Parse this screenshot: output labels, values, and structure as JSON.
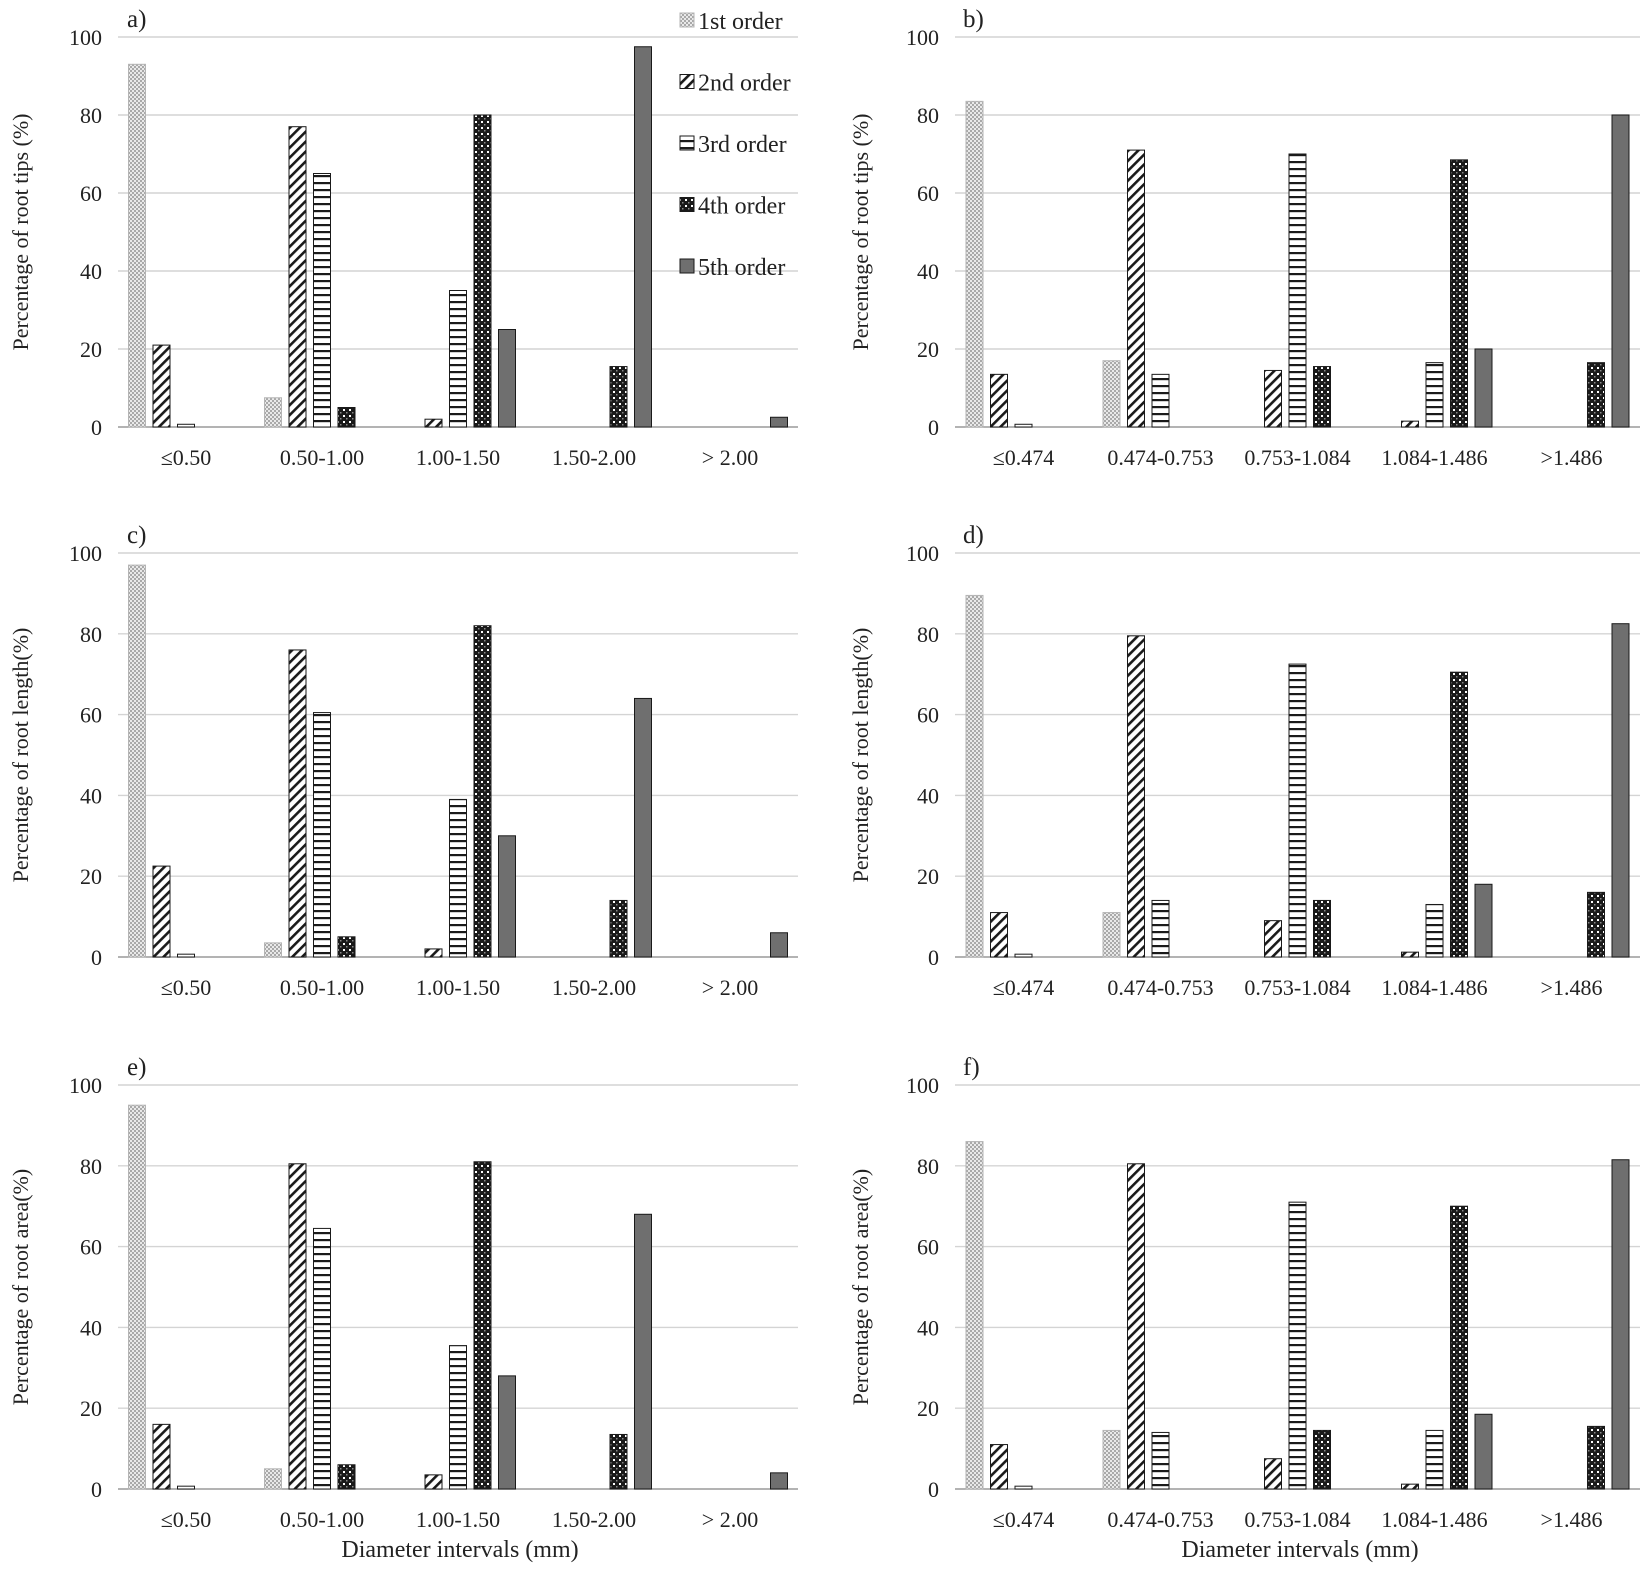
{
  "figure": {
    "x_axis_title": "Diameter intervals (mm)",
    "legend": {
      "entries": [
        {
          "label": "1st order",
          "pattern": "dots"
        },
        {
          "label": "2nd order",
          "pattern": "diag"
        },
        {
          "label": "3rd order",
          "pattern": "horiz"
        },
        {
          "label": "4th order",
          "pattern": "check"
        },
        {
          "label": "5th order",
          "pattern": "solid"
        }
      ],
      "placement": "top-right of panel a"
    }
  },
  "chart_data": [
    {
      "panel": "a)",
      "type": "bar",
      "ylabel": "Percentage of root tips (%)",
      "ylim": [
        0,
        100
      ],
      "yticks": [
        "0",
        "20",
        "40",
        "60",
        "80",
        "100"
      ],
      "categories": [
        "≤0.50",
        "0.50-1.00",
        "1.00-1.50",
        "1.50-2.00",
        "> 2.00"
      ],
      "series": [
        {
          "name": "1st order",
          "values": [
            93,
            7.5,
            0,
            0,
            0
          ]
        },
        {
          "name": "2nd order",
          "values": [
            21,
            77,
            2,
            0,
            0
          ]
        },
        {
          "name": "3rd order",
          "values": [
            0.7,
            65,
            35,
            0,
            0
          ]
        },
        {
          "name": "4th order",
          "values": [
            0,
            5,
            80,
            15.5,
            0
          ]
        },
        {
          "name": "5th order",
          "values": [
            0,
            0,
            25,
            97.5,
            2.5
          ]
        }
      ]
    },
    {
      "panel": "b)",
      "type": "bar",
      "ylabel": "Percentage of root tips (%)",
      "ylim": [
        0,
        100
      ],
      "yticks": [
        "0",
        "20",
        "40",
        "60",
        "80",
        "100"
      ],
      "categories": [
        "≤0.474",
        "0.474-0.753",
        "0.753-1.084",
        "1.084-1.486",
        ">1.486"
      ],
      "series": [
        {
          "name": "1st order",
          "values": [
            83.5,
            17,
            0,
            0,
            0
          ]
        },
        {
          "name": "2nd order",
          "values": [
            13.5,
            71,
            14.5,
            1.5,
            0
          ]
        },
        {
          "name": "3rd order",
          "values": [
            0.7,
            13.5,
            70,
            16.5,
            0
          ]
        },
        {
          "name": "4th order",
          "values": [
            0,
            0,
            15.5,
            68.5,
            16.5
          ]
        },
        {
          "name": "5th order",
          "values": [
            0,
            0,
            0,
            20,
            80
          ]
        }
      ]
    },
    {
      "panel": "c)",
      "type": "bar",
      "ylabel": "Percentage of root length(%)",
      "ylim": [
        0,
        100
      ],
      "yticks": [
        "0",
        "20",
        "40",
        "60",
        "80",
        "100"
      ],
      "categories": [
        "≤0.50",
        "0.50-1.00",
        "1.00-1.50",
        "1.50-2.00",
        "> 2.00"
      ],
      "series": [
        {
          "name": "1st order",
          "values": [
            97,
            3.5,
            0,
            0,
            0
          ]
        },
        {
          "name": "2nd order",
          "values": [
            22.5,
            76,
            2,
            0,
            0
          ]
        },
        {
          "name": "3rd order",
          "values": [
            0.7,
            60.5,
            39,
            0,
            0
          ]
        },
        {
          "name": "4th order",
          "values": [
            0,
            5,
            82,
            14,
            0
          ]
        },
        {
          "name": "5th order",
          "values": [
            0,
            0,
            30,
            64,
            6
          ]
        }
      ]
    },
    {
      "panel": "d)",
      "type": "bar",
      "ylabel": "Percentage of root length(%)",
      "ylim": [
        0,
        100
      ],
      "yticks": [
        "0",
        "20",
        "40",
        "60",
        "80",
        "100"
      ],
      "categories": [
        "≤0.474",
        "0.474-0.753",
        "0.753-1.084",
        "1.084-1.486",
        ">1.486"
      ],
      "series": [
        {
          "name": "1st order",
          "values": [
            89.5,
            11,
            0,
            0,
            0
          ]
        },
        {
          "name": "2nd order",
          "values": [
            11,
            79.5,
            9,
            1.2,
            0
          ]
        },
        {
          "name": "3rd order",
          "values": [
            0.7,
            14,
            72.5,
            13,
            0
          ]
        },
        {
          "name": "4th order",
          "values": [
            0,
            0,
            14,
            70.5,
            16
          ]
        },
        {
          "name": "5th order",
          "values": [
            0,
            0,
            0,
            18,
            82.5
          ]
        }
      ]
    },
    {
      "panel": "e)",
      "type": "bar",
      "ylabel": "Percentage of root area(%)",
      "ylim": [
        0,
        100
      ],
      "yticks": [
        "0",
        "20",
        "40",
        "60",
        "80",
        "100"
      ],
      "categories": [
        "≤0.50",
        "0.50-1.00",
        "1.00-1.50",
        "1.50-2.00",
        "> 2.00"
      ],
      "series": [
        {
          "name": "1st order",
          "values": [
            95,
            5,
            0,
            0,
            0
          ]
        },
        {
          "name": "2nd order",
          "values": [
            16,
            80.5,
            3.5,
            0,
            0
          ]
        },
        {
          "name": "3rd order",
          "values": [
            0.7,
            64.5,
            35.5,
            0,
            0
          ]
        },
        {
          "name": "4th order",
          "values": [
            0,
            6,
            81,
            13.5,
            0
          ]
        },
        {
          "name": "5th order",
          "values": [
            0,
            0,
            28,
            68,
            4
          ]
        }
      ]
    },
    {
      "panel": "f)",
      "type": "bar",
      "ylabel": "Percentage of root area(%)",
      "ylim": [
        0,
        100
      ],
      "yticks": [
        "0",
        "20",
        "40",
        "60",
        "80",
        "100"
      ],
      "categories": [
        "≤0.474",
        "0.474-0.753",
        "0.753-1.084",
        "1.084-1.486",
        ">1.486"
      ],
      "series": [
        {
          "name": "1st order",
          "values": [
            86,
            14.5,
            0,
            0,
            0
          ]
        },
        {
          "name": "2nd order",
          "values": [
            11,
            80.5,
            7.5,
            1.2,
            0
          ]
        },
        {
          "name": "3rd order",
          "values": [
            0.7,
            14,
            71,
            14.5,
            0
          ]
        },
        {
          "name": "4th order",
          "values": [
            0,
            0,
            14.5,
            70,
            15.5
          ]
        },
        {
          "name": "5th order",
          "values": [
            0,
            0,
            0,
            18.5,
            81.5
          ]
        }
      ]
    }
  ]
}
